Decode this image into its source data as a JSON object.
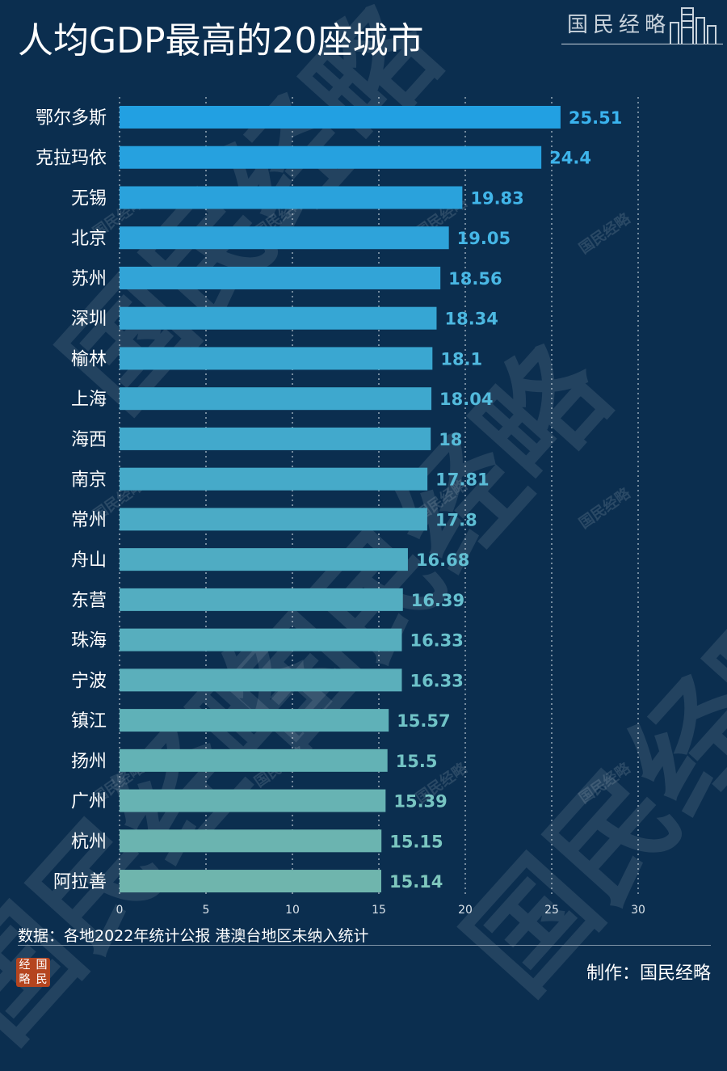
{
  "title": "人均GDP最高的20座城市",
  "brand": "国民经略",
  "source": "数据：各地2022年统计公报  港澳台地区未纳入统计",
  "maker": "制作：国民经略",
  "logo_chars": [
    "经",
    "国",
    "略",
    "民"
  ],
  "colors": {
    "background": "#0b2e4f",
    "bar_top": "#22a0e2",
    "bar_bottom": "#6fb5ad",
    "label_top": "#3ab3ee",
    "label_bottom": "#7fc7bd",
    "grid": "#cfd8e0"
  },
  "chart_data": {
    "type": "bar",
    "orientation": "horizontal",
    "categories": [
      "鄂尔多斯",
      "克拉玛依",
      "无锡",
      "北京",
      "苏州",
      "深圳",
      "榆林",
      "上海",
      "海西",
      "南京",
      "常州",
      "舟山",
      "东营",
      "珠海",
      "宁波",
      "镇江",
      "扬州",
      "广州",
      "杭州",
      "阿拉善"
    ],
    "values": [
      25.51,
      24.4,
      19.83,
      19.05,
      18.56,
      18.34,
      18.1,
      18.04,
      18,
      17.81,
      17.8,
      16.68,
      16.39,
      16.33,
      16.33,
      15.57,
      15.5,
      15.39,
      15.15,
      15.14
    ],
    "value_labels": [
      "25.51",
      "24.4",
      "19.83",
      "19.05",
      "18.56",
      "18.34",
      "18.1",
      "18.04",
      "18",
      "17.81",
      "17.8",
      "16.68",
      "16.39",
      "16.33",
      "16.33",
      "15.57",
      "15.5",
      "15.39",
      "15.15",
      "15.14"
    ],
    "xlim": [
      0,
      30
    ],
    "xticks": [
      0,
      5,
      10,
      15,
      20,
      25,
      30
    ],
    "xtick_labels": [
      "0",
      "5",
      "10",
      "15",
      "20",
      "25",
      "30"
    ],
    "grid": "vertical dotted"
  }
}
